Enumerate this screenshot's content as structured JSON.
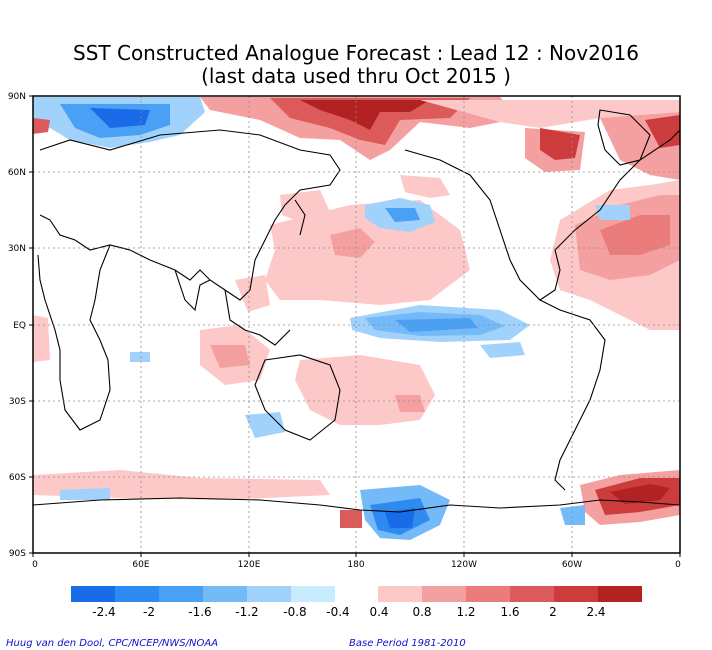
{
  "title": "SST Constructed Analogue Forecast : Lead 12 : Nov2016",
  "subtitle": "(last data used thru Oct 2015 )",
  "lat_labels": [
    "90N",
    "60N",
    "30N",
    "EQ",
    "30S",
    "60S",
    "90S"
  ],
  "lon_labels": [
    "0",
    "60E",
    "120E",
    "180",
    "120W",
    "60W",
    "0"
  ],
  "colorbar": {
    "negative_colors": [
      "#1a6be8",
      "#2e8af0",
      "#4aa0f4",
      "#74baf8",
      "#a0d2fb",
      "#c8ecfe"
    ],
    "positive_colors": [
      "#fdc8c8",
      "#f5a0a0",
      "#ea7c7c",
      "#dc5a5a",
      "#cc3c3c",
      "#b22222"
    ],
    "negative_labels": [
      "-2.4",
      "-2",
      "-1.6",
      "-1.2",
      "-0.8",
      "-0.4"
    ],
    "positive_labels": [
      "0.4",
      "0.8",
      "1.2",
      "1.6",
      "2",
      "2.4"
    ]
  },
  "credit_left": "Huug van den Dool, CPC/NCEP/NWS/NOAA",
  "credit_right": "Base Period 1981-2010"
}
